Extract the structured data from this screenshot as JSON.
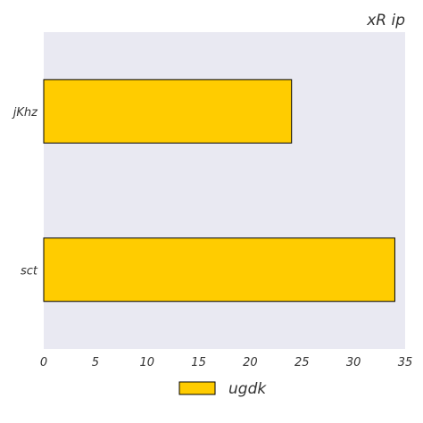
{
  "chart_data": {
    "type": "bar",
    "orientation": "horizontal",
    "title": "xR ip",
    "xlabel": "",
    "ylabel": "",
    "categories": [
      "sct",
      "jKhz"
    ],
    "series": [
      {
        "name": "ugdk",
        "values": [
          34,
          24
        ]
      }
    ],
    "xlim": [
      0,
      35
    ],
    "xticks": [
      "0",
      "5",
      "10",
      "15",
      "20",
      "25",
      "30",
      "35"
    ],
    "grid": false,
    "legend_position": "bottom",
    "colors": {
      "plot_background": "#e9e9f2",
      "bar_fill": "#ffcc00",
      "bar_edge": "#000000"
    }
  }
}
